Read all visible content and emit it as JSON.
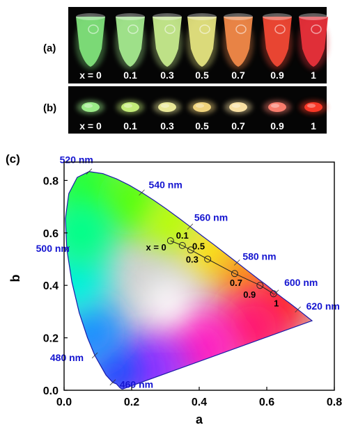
{
  "photo_panel_a": {
    "label": "(a)",
    "background": "#050505",
    "samples": [
      {
        "x_label": "x = 0",
        "color": "#7fe07a"
      },
      {
        "x_label": "0.1",
        "color": "#a3e88e"
      },
      {
        "x_label": "0.3",
        "color": "#c5e98c"
      },
      {
        "x_label": "0.5",
        "color": "#e3e27e"
      },
      {
        "x_label": "0.7",
        "color": "#f08848"
      },
      {
        "x_label": "0.9",
        "color": "#f04834"
      },
      {
        "x_label": "1",
        "color": "#e8303a"
      }
    ]
  },
  "photo_panel_b": {
    "label": "(b)",
    "background": "#050505",
    "samples": [
      {
        "x_label": "x = 0",
        "color": "#9ff28c"
      },
      {
        "x_label": "0.1",
        "color": "#c8f27c"
      },
      {
        "x_label": "0.3",
        "color": "#f0ee9c"
      },
      {
        "x_label": "0.5",
        "color": "#f6d880"
      },
      {
        "x_label": "0.7",
        "color": "#ffe6a6"
      },
      {
        "x_label": "0.9",
        "color": "#ff8070"
      },
      {
        "x_label": "1",
        "color": "#ff3a28"
      }
    ]
  },
  "chart_data": {
    "type": "scatter",
    "panel_label": "(c)",
    "xlabel": "a",
    "ylabel": "b",
    "xlim": [
      0.0,
      0.8
    ],
    "ylim": [
      0.0,
      0.87
    ],
    "x_ticks": [
      "0.0",
      "0.2",
      "0.4",
      "0.6",
      "0.8"
    ],
    "y_ticks": [
      "0.0",
      "0.2",
      "0.4",
      "0.6",
      "0.8"
    ],
    "x_tick_values": [
      0.0,
      0.2,
      0.4,
      0.6,
      0.8
    ],
    "y_tick_values": [
      0.0,
      0.2,
      0.4,
      0.6,
      0.8
    ],
    "grid": false,
    "locus_color": "#1a1aa8",
    "wavelength_label_color": "#1515d0",
    "spectral_locus": [
      [
        0.174,
        0.005
      ],
      [
        0.171,
        0.005
      ],
      [
        0.166,
        0.009
      ],
      [
        0.155,
        0.024
      ],
      [
        0.144,
        0.03
      ],
      [
        0.124,
        0.058
      ],
      [
        0.091,
        0.133
      ],
      [
        0.069,
        0.201
      ],
      [
        0.045,
        0.295
      ],
      [
        0.023,
        0.413
      ],
      [
        0.008,
        0.538
      ],
      [
        0.004,
        0.655
      ],
      [
        0.014,
        0.75
      ],
      [
        0.039,
        0.812
      ],
      [
        0.074,
        0.834
      ],
      [
        0.115,
        0.826
      ],
      [
        0.155,
        0.806
      ],
      [
        0.193,
        0.782
      ],
      [
        0.23,
        0.754
      ],
      [
        0.266,
        0.724
      ],
      [
        0.302,
        0.692
      ],
      [
        0.337,
        0.659
      ],
      [
        0.373,
        0.624
      ],
      [
        0.408,
        0.589
      ],
      [
        0.444,
        0.555
      ],
      [
        0.479,
        0.52
      ],
      [
        0.512,
        0.487
      ],
      [
        0.545,
        0.454
      ],
      [
        0.575,
        0.424
      ],
      [
        0.603,
        0.397
      ],
      [
        0.627,
        0.372
      ],
      [
        0.648,
        0.351
      ],
      [
        0.666,
        0.334
      ],
      [
        0.68,
        0.32
      ],
      [
        0.692,
        0.308
      ],
      [
        0.701,
        0.299
      ],
      [
        0.734,
        0.265
      ]
    ],
    "wavelength_labels": [
      {
        "text": "460 nm",
        "a": 0.144,
        "b": 0.03
      },
      {
        "text": "480 nm",
        "a": 0.091,
        "b": 0.133
      },
      {
        "text": "500 nm",
        "a": 0.008,
        "b": 0.538
      },
      {
        "text": "520 nm",
        "a": 0.074,
        "b": 0.834
      },
      {
        "text": "540 nm",
        "a": 0.23,
        "b": 0.754
      },
      {
        "text": "560 nm",
        "a": 0.373,
        "b": 0.624
      },
      {
        "text": "580 nm",
        "a": 0.512,
        "b": 0.487
      },
      {
        "text": "600 nm",
        "a": 0.627,
        "b": 0.372
      },
      {
        "text": "620 nm",
        "a": 0.692,
        "b": 0.308
      }
    ],
    "points": [
      {
        "label": "x = 0",
        "a": 0.315,
        "b": 0.57
      },
      {
        "label": "0.1",
        "a": 0.35,
        "b": 0.552
      },
      {
        "label": "0.3",
        "a": 0.375,
        "b": 0.535
      },
      {
        "label": "0.5",
        "a": 0.425,
        "b": 0.5
      },
      {
        "label": "0.7",
        "a": 0.505,
        "b": 0.445
      },
      {
        "label": "0.9",
        "a": 0.58,
        "b": 0.4
      },
      {
        "label": "1",
        "a": 0.62,
        "b": 0.368
      }
    ]
  }
}
